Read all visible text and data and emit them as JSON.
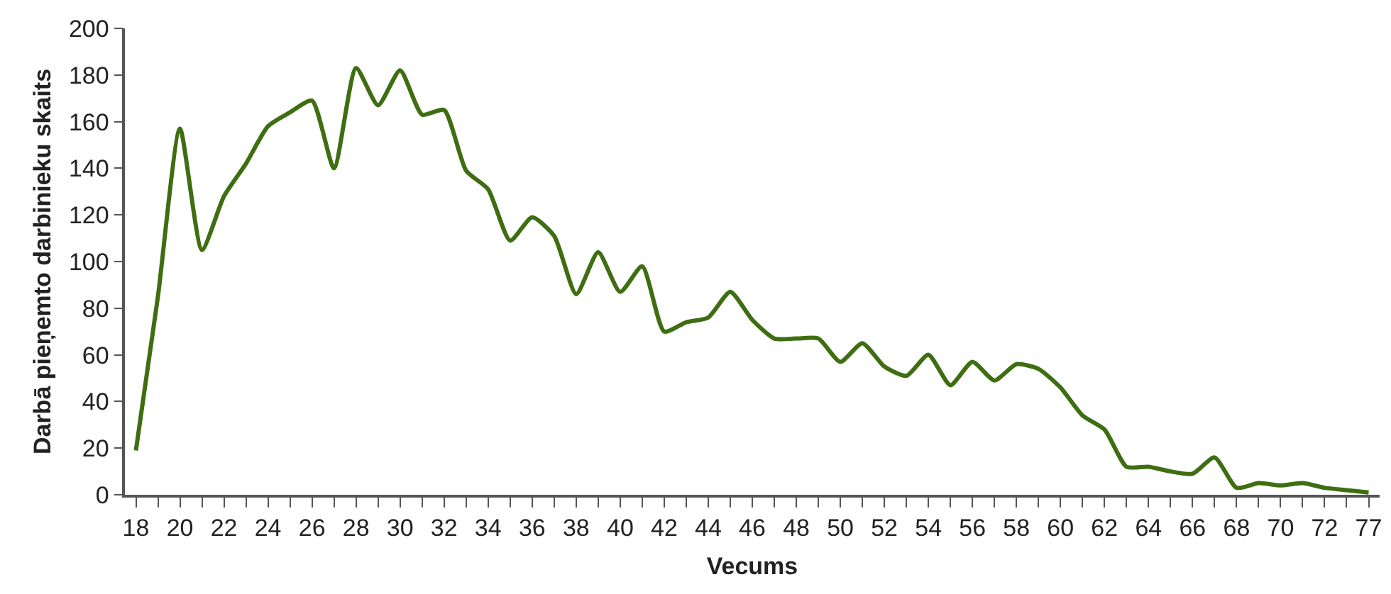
{
  "chart_data": {
    "type": "line",
    "xlabel": "Vecums",
    "ylabel": "Darbā pieņemto darbinieku skaits",
    "categories": [
      "18",
      null,
      "20",
      null,
      "22",
      null,
      "24",
      null,
      "26",
      null,
      "28",
      null,
      "30",
      null,
      "32",
      null,
      "34",
      null,
      "36",
      null,
      "38",
      null,
      "40",
      null,
      "42",
      null,
      "44",
      null,
      "46",
      null,
      "48",
      null,
      "50",
      null,
      "52",
      null,
      "54",
      null,
      "56",
      null,
      "58",
      null,
      "60",
      null,
      "62",
      null,
      "64",
      null,
      "66",
      null,
      "68",
      null,
      "70",
      null,
      "72",
      null,
      "77"
    ],
    "series": [
      {
        "color": "#3f6e12",
        "values": [
          19,
          85,
          157,
          105,
          128,
          142,
          158,
          164,
          169,
          140,
          183,
          167,
          182,
          163,
          165,
          139,
          131,
          109,
          119,
          111,
          86,
          104,
          87,
          98,
          70,
          74,
          76,
          87,
          75,
          67,
          67,
          67,
          57,
          65,
          55,
          51,
          60,
          47,
          57,
          49,
          56,
          54,
          46,
          34,
          28,
          12,
          12,
          10,
          9,
          16,
          3,
          5,
          4,
          5,
          3,
          2,
          1
        ]
      }
    ],
    "ylim": [
      0,
      200
    ],
    "yticks": [
      0,
      20,
      40,
      60,
      80,
      100,
      120,
      140,
      160,
      180,
      200
    ],
    "grid": false,
    "marker": "none",
    "line_style": "solid"
  }
}
